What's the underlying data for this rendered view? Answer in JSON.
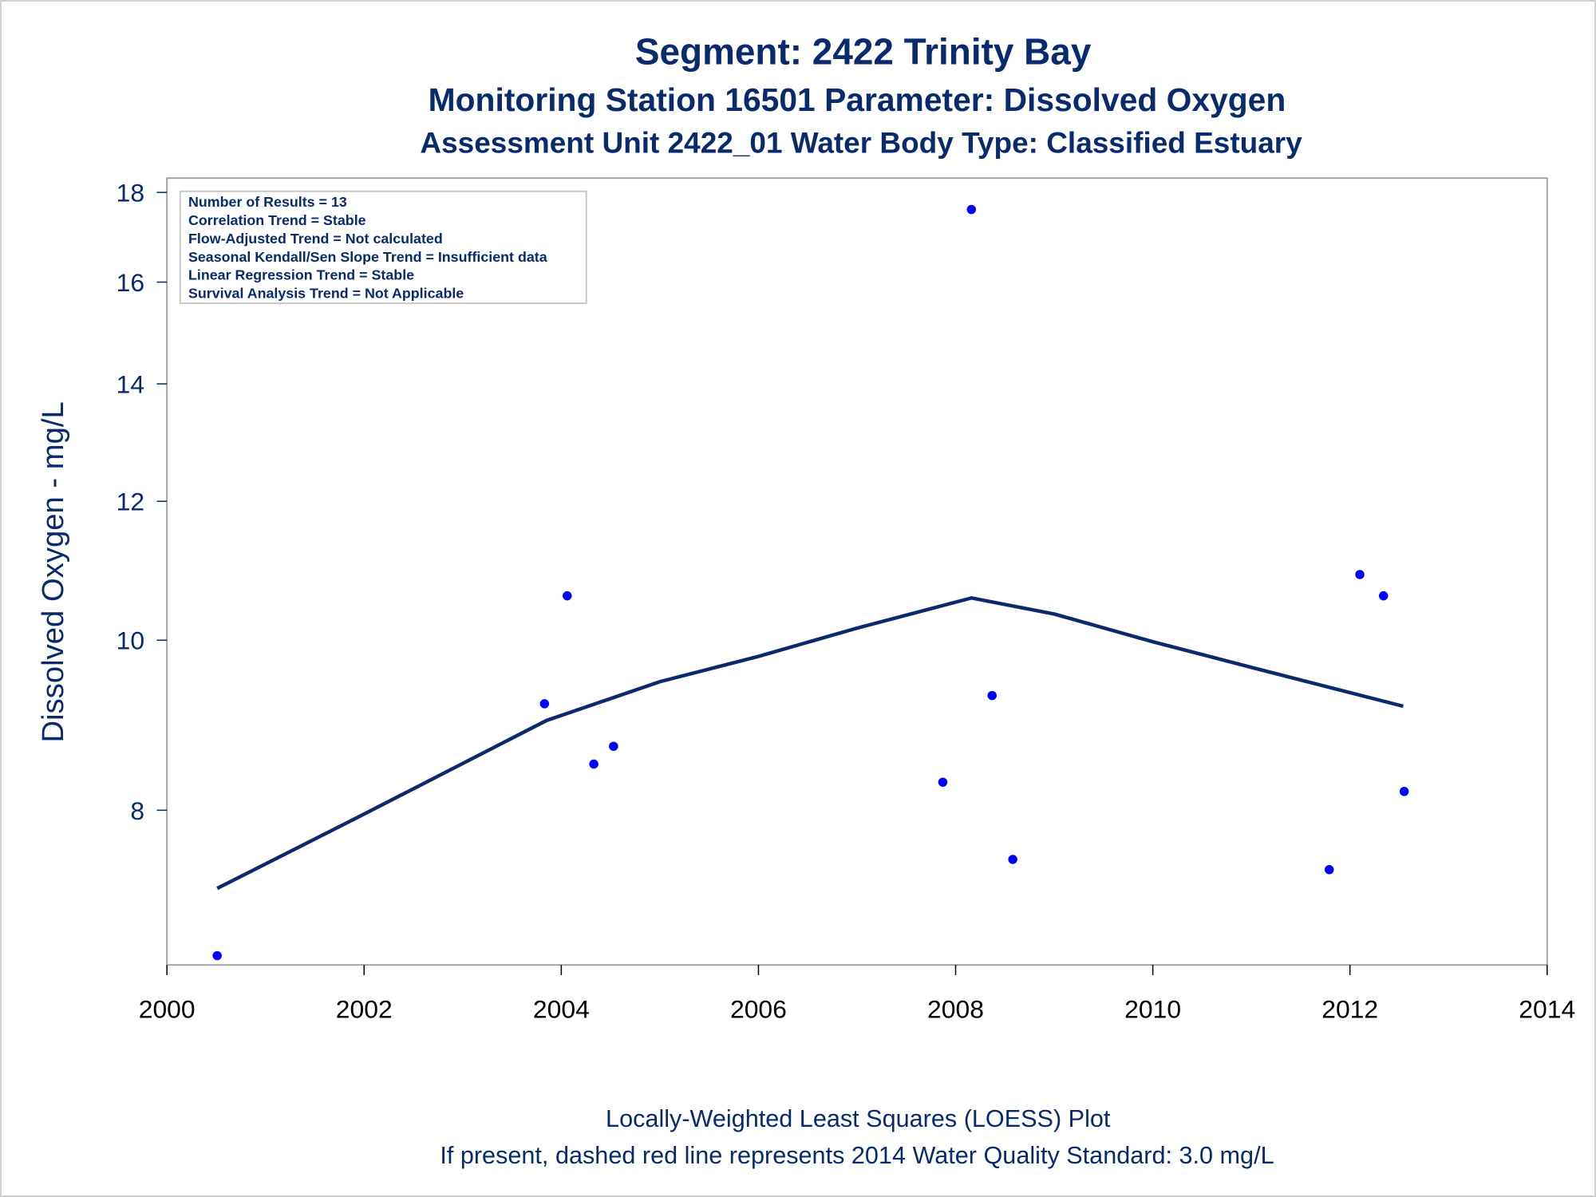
{
  "chart_data": {
    "type": "scatter",
    "title": "Segment: 2422  Trinity Bay",
    "subtitle": "Monitoring Station 16501 Parameter: Dissolved Oxygen",
    "subtitle2": "Assessment Unit 2422_01   Water Body Type: Classified Estuary",
    "xlabel": "",
    "ylabel": "Dissolved Oxygen - mg/L",
    "xlim": [
      2000,
      2014
    ],
    "ylim": [
      6.53,
      18.34
    ],
    "yscale": "log",
    "xticks": [
      "2000",
      "2002",
      "2004",
      "2006",
      "2008",
      "2010",
      "2012",
      "2014"
    ],
    "yticks": [
      "8",
      "10",
      "12",
      "14",
      "16",
      "18"
    ],
    "grid": false,
    "stats_box": [
      "Number of Results = 13",
      "Correlation Trend = Stable",
      "Flow-Adjusted Trend = Not calculated",
      "Seasonal Kendall/Sen Slope Trend = Insufficient data",
      "Linear Regression Trend = Stable",
      "Survival Analysis Trend = Not Applicable"
    ],
    "points": [
      {
        "x": 2000.51,
        "y": 6.61
      },
      {
        "x": 2003.83,
        "y": 9.2
      },
      {
        "x": 2004.06,
        "y": 10.6
      },
      {
        "x": 2004.33,
        "y": 8.5
      },
      {
        "x": 2004.53,
        "y": 8.7
      },
      {
        "x": 2007.87,
        "y": 8.3
      },
      {
        "x": 2008.16,
        "y": 17.6
      },
      {
        "x": 2008.37,
        "y": 9.3
      },
      {
        "x": 2008.58,
        "y": 7.5
      },
      {
        "x": 2011.79,
        "y": 7.4
      },
      {
        "x": 2012.1,
        "y": 10.9
      },
      {
        "x": 2012.34,
        "y": 10.6
      },
      {
        "x": 2012.55,
        "y": 8.2
      }
    ],
    "loess": [
      {
        "x": 2000.51,
        "y": 7.22
      },
      {
        "x": 2002.0,
        "y": 7.96
      },
      {
        "x": 2003.85,
        "y": 9.0
      },
      {
        "x": 2005.0,
        "y": 9.47
      },
      {
        "x": 2006.0,
        "y": 9.79
      },
      {
        "x": 2007.0,
        "y": 10.16
      },
      {
        "x": 2008.16,
        "y": 10.57
      },
      {
        "x": 2009.0,
        "y": 10.35
      },
      {
        "x": 2010.0,
        "y": 9.98
      },
      {
        "x": 2011.0,
        "y": 9.65
      },
      {
        "x": 2012.54,
        "y": 9.17
      }
    ],
    "footnote1": "Locally-Weighted Least Squares (LOESS) Plot",
    "footnote2": "If present, dashed red line represents 2014 Water Quality Standard: 3.0 mg/L",
    "colors": {
      "points": "#0000ff",
      "line": "#0b2a6b",
      "text": "#0a2a6e"
    }
  }
}
